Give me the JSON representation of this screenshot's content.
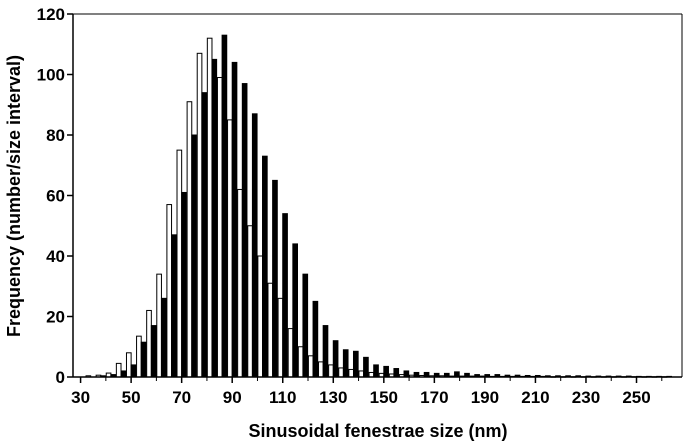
{
  "chart_data": {
    "type": "bar",
    "title": "",
    "xlabel": "Sinusoidal fenestrae size (nm)",
    "ylabel": "Frequency (number/size interval)",
    "xlim": [
      27,
      268
    ],
    "ylim": [
      0,
      120
    ],
    "x_ticks": [
      30,
      50,
      70,
      90,
      110,
      130,
      150,
      170,
      190,
      210,
      230,
      250
    ],
    "y_ticks": [
      0,
      20,
      40,
      60,
      80,
      100,
      120
    ],
    "grid": false,
    "legend": "none",
    "bin_width_nm": 4,
    "categories": [
      34,
      38,
      42,
      46,
      50,
      54,
      58,
      62,
      66,
      70,
      74,
      78,
      82,
      86,
      90,
      94,
      98,
      102,
      106,
      110,
      114,
      118,
      122,
      126,
      130,
      134,
      138,
      142,
      146,
      150,
      154,
      158,
      162,
      166,
      170,
      174,
      178,
      182,
      186,
      190,
      194,
      198,
      202,
      206,
      210,
      214,
      218,
      222,
      226,
      230,
      234,
      238,
      242,
      246,
      250,
      254,
      258,
      262
    ],
    "series": [
      {
        "fill": "#ffffff",
        "stroke": "#000000",
        "values": [
          0.4,
          0.6,
          1.3,
          4.5,
          8,
          13.5,
          22,
          34,
          57,
          75,
          91,
          107,
          112,
          99,
          85,
          62,
          50,
          40,
          31,
          26,
          16,
          10,
          7,
          5,
          4,
          3,
          2.5,
          2,
          1.5,
          1.2,
          1,
          0.8,
          0.6,
          0.5,
          0.4,
          0.4,
          0.3,
          0.3,
          0.3,
          0.3,
          0.2,
          0.2,
          0.2,
          0.2,
          0.2,
          0.2,
          0.1,
          0.1,
          0.1,
          0.1,
          0.1,
          0.1,
          0.1,
          0.1,
          0.1,
          0.1,
          0.1,
          0.1
        ]
      },
      {
        "fill": "#000000",
        "stroke": "#000000",
        "values": [
          0,
          0.4,
          0.8,
          2,
          4,
          11.5,
          17,
          26,
          47,
          61,
          80,
          94,
          105,
          113,
          104,
          97,
          87,
          73,
          65,
          54,
          44,
          34,
          25,
          17,
          12,
          9,
          8.5,
          6.5,
          4,
          3.5,
          2.8,
          2,
          1.5,
          1.5,
          1.2,
          1.2,
          1.7,
          1.2,
          0.8,
          0.8,
          0.8,
          0.6,
          0.6,
          0.5,
          0.5,
          0.4,
          0.4,
          0.4,
          0.4,
          0.3,
          0.3,
          0.3,
          0.3,
          0.3,
          0.2,
          0.2,
          0.2,
          0.2
        ]
      }
    ]
  }
}
